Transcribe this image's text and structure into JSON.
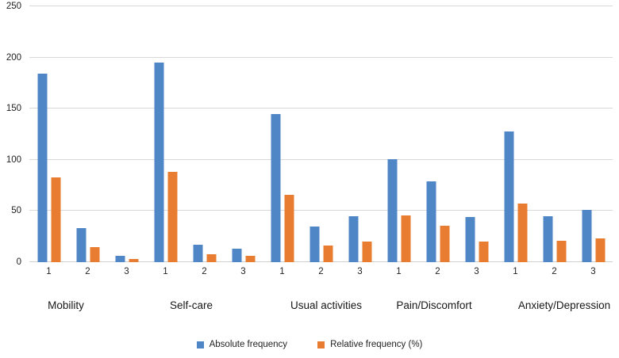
{
  "chart_data": {
    "type": "bar",
    "title": "",
    "xlabel": "",
    "ylabel": "",
    "categories": [
      "Mobility",
      "Self-care",
      "Usual activities",
      "Pain/Discomfort",
      "Anxiety/Depression"
    ],
    "levels": [
      "1",
      "2",
      "3"
    ],
    "series": [
      {
        "name": "Absolute frequency",
        "color": "#4f86c5",
        "values": [
          [
            184,
            33,
            6
          ],
          [
            195,
            17,
            13
          ],
          [
            145,
            35,
            45
          ],
          [
            101,
            79,
            44
          ],
          [
            128,
            45,
            51
          ]
        ]
      },
      {
        "name": "Relative frequency (%)",
        "color": "#e87d32",
        "values": [
          [
            83,
            15,
            3
          ],
          [
            88,
            8,
            6
          ],
          [
            66,
            16,
            20
          ],
          [
            46,
            36,
            20
          ],
          [
            57,
            21,
            23
          ]
        ]
      }
    ],
    "y_ticks": [
      0,
      50,
      100,
      150,
      200,
      250
    ],
    "ylim": [
      0,
      250
    ],
    "grid": "horizontal",
    "gridline_color": "#d8d8d8",
    "background_color": "#ffffff",
    "legend_position": "bottom-center"
  }
}
